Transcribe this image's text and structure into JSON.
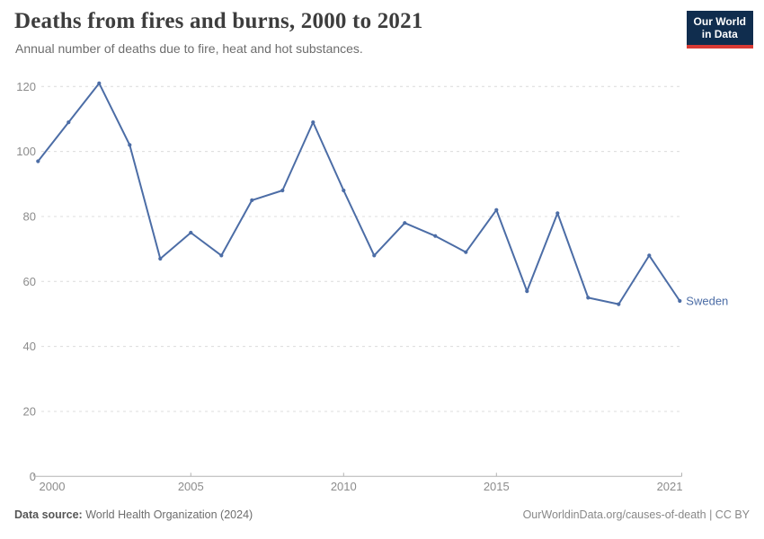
{
  "header": {
    "title": "Deaths from fires and burns, 2000 to 2021",
    "subtitle": "Annual number of deaths due to fire, heat and hot substances."
  },
  "logo": {
    "line1": "Our World",
    "line2": "in Data",
    "bg_color": "#102d4e",
    "accent_color": "#d93a34"
  },
  "chart_data": {
    "type": "line",
    "title": "Deaths from fires and burns, 2000 to 2021",
    "subtitle": "Annual number of deaths due to fire, heat and hot substances.",
    "x": [
      2000,
      2001,
      2002,
      2003,
      2004,
      2005,
      2006,
      2007,
      2008,
      2009,
      2010,
      2011,
      2012,
      2013,
      2014,
      2015,
      2016,
      2017,
      2018,
      2019,
      2020,
      2021
    ],
    "series": [
      {
        "name": "Sweden",
        "color": "#4c6da6",
        "values": [
          97,
          109,
          121,
          102,
          67,
          75,
          68,
          85,
          88,
          109,
          88,
          68,
          78,
          74,
          69,
          82,
          57,
          81,
          55,
          53,
          68,
          54
        ]
      }
    ],
    "ylim": [
      0,
      120
    ],
    "yticks": [
      0,
      20,
      40,
      60,
      80,
      100,
      120
    ],
    "xticks": [
      2000,
      2005,
      2010,
      2015,
      2021
    ],
    "xlabel": "",
    "ylabel": "",
    "grid": "horizontal-dashed",
    "legend_position": "end-of-line-label",
    "grid_color": "#dcdcdc",
    "axis_color": "#b3b3b3",
    "tick_label_color": "#8c8c8c"
  },
  "footer": {
    "source_label": "Data source:",
    "source_value": "World Health Organization (2024)",
    "license": "OurWorldinData.org/causes-of-death | CC BY"
  }
}
